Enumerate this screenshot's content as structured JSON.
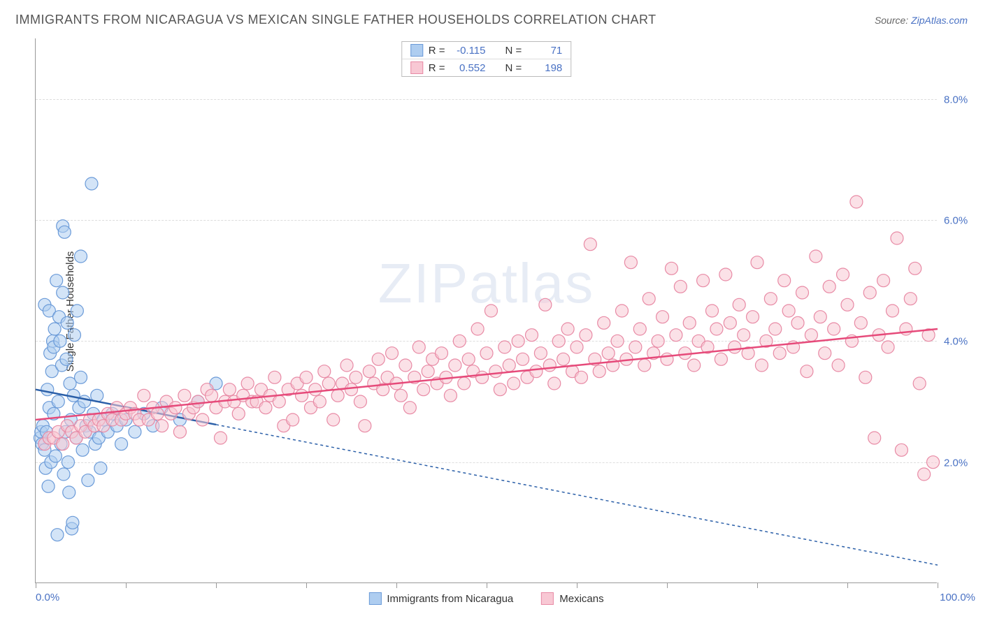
{
  "title": "IMMIGRANTS FROM NICARAGUA VS MEXICAN SINGLE FATHER HOUSEHOLDS CORRELATION CHART",
  "source_prefix": "Source: ",
  "source_name": "ZipAtlas.com",
  "y_axis_label": "Single Father Households",
  "watermark": "ZIPatlas",
  "chart": {
    "type": "scatter",
    "xlim": [
      0,
      100
    ],
    "ylim": [
      0,
      9
    ],
    "x_min_label": "0.0%",
    "x_max_label": "100.0%",
    "x_ticks": [
      0,
      10,
      20,
      30,
      40,
      50,
      60,
      70,
      80,
      90,
      100
    ],
    "y_ticks": [
      2.0,
      4.0,
      6.0,
      8.0
    ],
    "y_tick_labels": [
      "2.0%",
      "4.0%",
      "6.0%",
      "8.0%"
    ],
    "grid_color": "#dddddd",
    "background_color": "#ffffff",
    "axis_color": "#999999",
    "tick_label_color": "#4a72c4",
    "marker_radius": 9,
    "marker_opacity": 0.55,
    "marker_stroke_width": 1.2,
    "series": [
      {
        "name": "Immigrants from Nicaragua",
        "fill_color": "#aecdf0",
        "stroke_color": "#6a9ad8",
        "line_color": "#2b5fa8",
        "line_width": 2.5,
        "line_dash_ext": "4,4",
        "r_value": "-0.115",
        "n_value": "71",
        "trend": {
          "x1": 0,
          "y1": 3.2,
          "x2": 100,
          "y2": 0.3,
          "solid_until_x": 20
        },
        "points": [
          [
            0.5,
            2.4
          ],
          [
            0.6,
            2.5
          ],
          [
            0.7,
            2.3
          ],
          [
            0.8,
            2.6
          ],
          [
            1.0,
            2.2
          ],
          [
            1.0,
            4.6
          ],
          [
            1.1,
            1.9
          ],
          [
            1.2,
            2.5
          ],
          [
            1.3,
            3.2
          ],
          [
            1.4,
            1.6
          ],
          [
            1.5,
            4.5
          ],
          [
            1.5,
            2.9
          ],
          [
            1.6,
            3.8
          ],
          [
            1.7,
            2.0
          ],
          [
            1.8,
            3.5
          ],
          [
            1.9,
            4.0
          ],
          [
            2.0,
            2.8
          ],
          [
            2.0,
            3.9
          ],
          [
            2.1,
            4.2
          ],
          [
            2.2,
            2.1
          ],
          [
            2.3,
            5.0
          ],
          [
            2.4,
            0.8
          ],
          [
            2.5,
            3.0
          ],
          [
            2.6,
            4.4
          ],
          [
            2.7,
            4.0
          ],
          [
            2.8,
            2.3
          ],
          [
            2.9,
            3.6
          ],
          [
            3.0,
            4.8
          ],
          [
            3.0,
            5.9
          ],
          [
            3.1,
            1.8
          ],
          [
            3.2,
            5.8
          ],
          [
            3.3,
            2.5
          ],
          [
            3.4,
            3.7
          ],
          [
            3.5,
            4.3
          ],
          [
            3.6,
            2.0
          ],
          [
            3.7,
            1.5
          ],
          [
            3.8,
            3.3
          ],
          [
            3.9,
            2.7
          ],
          [
            4.0,
            0.9
          ],
          [
            4.1,
            1.0
          ],
          [
            4.2,
            3.1
          ],
          [
            4.3,
            4.1
          ],
          [
            4.5,
            2.4
          ],
          [
            4.6,
            4.5
          ],
          [
            4.8,
            2.9
          ],
          [
            5.0,
            3.4
          ],
          [
            5.0,
            5.4
          ],
          [
            5.2,
            2.2
          ],
          [
            5.4,
            3.0
          ],
          [
            5.6,
            2.6
          ],
          [
            5.8,
            1.7
          ],
          [
            6.0,
            2.5
          ],
          [
            6.2,
            6.6
          ],
          [
            6.4,
            2.8
          ],
          [
            6.6,
            2.3
          ],
          [
            6.8,
            3.1
          ],
          [
            7.0,
            2.4
          ],
          [
            7.2,
            1.9
          ],
          [
            7.5,
            2.7
          ],
          [
            8.0,
            2.5
          ],
          [
            8.5,
            2.8
          ],
          [
            9.0,
            2.6
          ],
          [
            9.5,
            2.3
          ],
          [
            10.0,
            2.7
          ],
          [
            11.0,
            2.5
          ],
          [
            12.0,
            2.8
          ],
          [
            13.0,
            2.6
          ],
          [
            14.0,
            2.9
          ],
          [
            16.0,
            2.7
          ],
          [
            18.0,
            3.0
          ],
          [
            20.0,
            3.3
          ]
        ]
      },
      {
        "name": "Mexicans",
        "fill_color": "#f8c8d4",
        "stroke_color": "#e88aa5",
        "line_color": "#e64a7a",
        "line_width": 2.5,
        "r_value": "0.552",
        "n_value": "198",
        "trend": {
          "x1": 0,
          "y1": 2.7,
          "x2": 100,
          "y2": 4.2
        },
        "points": [
          [
            1,
            2.3
          ],
          [
            1.5,
            2.4
          ],
          [
            2,
            2.4
          ],
          [
            2.5,
            2.5
          ],
          [
            3,
            2.3
          ],
          [
            3.5,
            2.6
          ],
          [
            4,
            2.5
          ],
          [
            4.5,
            2.4
          ],
          [
            5,
            2.6
          ],
          [
            5.5,
            2.5
          ],
          [
            6,
            2.7
          ],
          [
            6.5,
            2.6
          ],
          [
            7,
            2.7
          ],
          [
            7.5,
            2.6
          ],
          [
            8,
            2.8
          ],
          [
            8.5,
            2.7
          ],
          [
            9,
            2.9
          ],
          [
            9.5,
            2.7
          ],
          [
            10,
            2.8
          ],
          [
            10.5,
            2.9
          ],
          [
            11,
            2.8
          ],
          [
            11.5,
            2.7
          ],
          [
            12,
            3.1
          ],
          [
            12.5,
            2.7
          ],
          [
            13,
            2.9
          ],
          [
            13.5,
            2.8
          ],
          [
            14,
            2.6
          ],
          [
            14.5,
            3.0
          ],
          [
            15,
            2.8
          ],
          [
            15.5,
            2.9
          ],
          [
            16,
            2.5
          ],
          [
            16.5,
            3.1
          ],
          [
            17,
            2.8
          ],
          [
            17.5,
            2.9
          ],
          [
            18,
            3.0
          ],
          [
            18.5,
            2.7
          ],
          [
            19,
            3.2
          ],
          [
            19.5,
            3.1
          ],
          [
            20,
            2.9
          ],
          [
            20.5,
            2.4
          ],
          [
            21,
            3.0
          ],
          [
            21.5,
            3.2
          ],
          [
            22,
            3.0
          ],
          [
            22.5,
            2.8
          ],
          [
            23,
            3.1
          ],
          [
            23.5,
            3.3
          ],
          [
            24,
            3.0
          ],
          [
            24.5,
            3.0
          ],
          [
            25,
            3.2
          ],
          [
            25.5,
            2.9
          ],
          [
            26,
            3.1
          ],
          [
            26.5,
            3.4
          ],
          [
            27,
            3.0
          ],
          [
            27.5,
            2.6
          ],
          [
            28,
            3.2
          ],
          [
            28.5,
            2.7
          ],
          [
            29,
            3.3
          ],
          [
            29.5,
            3.1
          ],
          [
            30,
            3.4
          ],
          [
            30.5,
            2.9
          ],
          [
            31,
            3.2
          ],
          [
            31.5,
            3.0
          ],
          [
            32,
            3.5
          ],
          [
            32.5,
            3.3
          ],
          [
            33,
            2.7
          ],
          [
            33.5,
            3.1
          ],
          [
            34,
            3.3
          ],
          [
            34.5,
            3.6
          ],
          [
            35,
            3.2
          ],
          [
            35.5,
            3.4
          ],
          [
            36,
            3.0
          ],
          [
            36.5,
            2.6
          ],
          [
            37,
            3.5
          ],
          [
            37.5,
            3.3
          ],
          [
            38,
            3.7
          ],
          [
            38.5,
            3.2
          ],
          [
            39,
            3.4
          ],
          [
            39.5,
            3.8
          ],
          [
            40,
            3.3
          ],
          [
            40.5,
            3.1
          ],
          [
            41,
            3.6
          ],
          [
            41.5,
            2.9
          ],
          [
            42,
            3.4
          ],
          [
            42.5,
            3.9
          ],
          [
            43,
            3.2
          ],
          [
            43.5,
            3.5
          ],
          [
            44,
            3.7
          ],
          [
            44.5,
            3.3
          ],
          [
            45,
            3.8
          ],
          [
            45.5,
            3.4
          ],
          [
            46,
            3.1
          ],
          [
            46.5,
            3.6
          ],
          [
            47,
            4.0
          ],
          [
            47.5,
            3.3
          ],
          [
            48,
            3.7
          ],
          [
            48.5,
            3.5
          ],
          [
            49,
            4.2
          ],
          [
            49.5,
            3.4
          ],
          [
            50,
            3.8
          ],
          [
            50.5,
            4.5
          ],
          [
            51,
            3.5
          ],
          [
            51.5,
            3.2
          ],
          [
            52,
            3.9
          ],
          [
            52.5,
            3.6
          ],
          [
            53,
            3.3
          ],
          [
            53.5,
            4.0
          ],
          [
            54,
            3.7
          ],
          [
            54.5,
            3.4
          ],
          [
            55,
            4.1
          ],
          [
            55.5,
            3.5
          ],
          [
            56,
            3.8
          ],
          [
            56.5,
            4.6
          ],
          [
            57,
            3.6
          ],
          [
            57.5,
            3.3
          ],
          [
            58,
            4.0
          ],
          [
            58.5,
            3.7
          ],
          [
            59,
            4.2
          ],
          [
            59.5,
            3.5
          ],
          [
            60,
            3.9
          ],
          [
            60.5,
            3.4
          ],
          [
            61,
            4.1
          ],
          [
            61.5,
            5.6
          ],
          [
            62,
            3.7
          ],
          [
            62.5,
            3.5
          ],
          [
            63,
            4.3
          ],
          [
            63.5,
            3.8
          ],
          [
            64,
            3.6
          ],
          [
            64.5,
            4.0
          ],
          [
            65,
            4.5
          ],
          [
            65.5,
            3.7
          ],
          [
            66,
            5.3
          ],
          [
            66.5,
            3.9
          ],
          [
            67,
            4.2
          ],
          [
            67.5,
            3.6
          ],
          [
            68,
            4.7
          ],
          [
            68.5,
            3.8
          ],
          [
            69,
            4.0
          ],
          [
            69.5,
            4.4
          ],
          [
            70,
            3.7
          ],
          [
            70.5,
            5.2
          ],
          [
            71,
            4.1
          ],
          [
            71.5,
            4.9
          ],
          [
            72,
            3.8
          ],
          [
            72.5,
            4.3
          ],
          [
            73,
            3.6
          ],
          [
            73.5,
            4.0
          ],
          [
            74,
            5.0
          ],
          [
            74.5,
            3.9
          ],
          [
            75,
            4.5
          ],
          [
            75.5,
            4.2
          ],
          [
            76,
            3.7
          ],
          [
            76.5,
            5.1
          ],
          [
            77,
            4.3
          ],
          [
            77.5,
            3.9
          ],
          [
            78,
            4.6
          ],
          [
            78.5,
            4.1
          ],
          [
            79,
            3.8
          ],
          [
            79.5,
            4.4
          ],
          [
            80,
            5.3
          ],
          [
            80.5,
            3.6
          ],
          [
            81,
            4.0
          ],
          [
            81.5,
            4.7
          ],
          [
            82,
            4.2
          ],
          [
            82.5,
            3.8
          ],
          [
            83,
            5.0
          ],
          [
            83.5,
            4.5
          ],
          [
            84,
            3.9
          ],
          [
            84.5,
            4.3
          ],
          [
            85,
            4.8
          ],
          [
            85.5,
            3.5
          ],
          [
            86,
            4.1
          ],
          [
            86.5,
            5.4
          ],
          [
            87,
            4.4
          ],
          [
            87.5,
            3.8
          ],
          [
            88,
            4.9
          ],
          [
            88.5,
            4.2
          ],
          [
            89,
            3.6
          ],
          [
            89.5,
            5.1
          ],
          [
            90,
            4.6
          ],
          [
            90.5,
            4.0
          ],
          [
            91,
            6.3
          ],
          [
            91.5,
            4.3
          ],
          [
            92,
            3.4
          ],
          [
            92.5,
            4.8
          ],
          [
            93,
            2.4
          ],
          [
            93.5,
            4.1
          ],
          [
            94,
            5.0
          ],
          [
            94.5,
            3.9
          ],
          [
            95,
            4.5
          ],
          [
            95.5,
            5.7
          ],
          [
            96,
            2.2
          ],
          [
            96.5,
            4.2
          ],
          [
            97,
            4.7
          ],
          [
            97.5,
            5.2
          ],
          [
            98,
            3.3
          ],
          [
            98.5,
            1.8
          ],
          [
            99,
            4.1
          ],
          [
            99.5,
            2.0
          ]
        ]
      }
    ]
  },
  "stat_box": {
    "r_label": "R =",
    "n_label": "N ="
  }
}
